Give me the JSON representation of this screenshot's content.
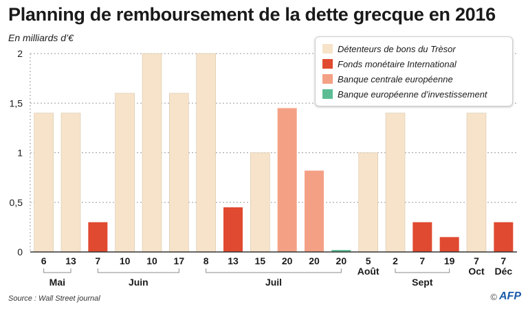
{
  "title": "Planning de remboursement de la dette grecque en 2016",
  "unit_label": "En milliards d’€",
  "source": "Source : Wall Street journal",
  "credit": {
    "copyright": "©",
    "logo_text": "AFP"
  },
  "colors": {
    "tresor": "#f6e3c9",
    "fmi": "#e04a30",
    "bce": "#f4a085",
    "bei": "#5cbd95",
    "grid": "#9a9a9a",
    "axis": "#333333"
  },
  "legend": [
    {
      "key": "tresor",
      "label": "Détenteurs de bons du Trèsor"
    },
    {
      "key": "fmi",
      "label": "Fonds monétaire International"
    },
    {
      "key": "bce",
      "label": "Banque centrale européenne"
    },
    {
      "key": "bei",
      "label": "Banque européenne d’investissement"
    }
  ],
  "chart_data": {
    "type": "bar",
    "title": "Planning de remboursement de la dette grecque en 2016",
    "ylabel": "En milliards d’€",
    "xlabel": "",
    "ylim": [
      0,
      2
    ],
    "yticks": [
      0,
      0.5,
      1,
      1.5,
      2
    ],
    "ytick_labels": [
      "0",
      "0,5",
      "1",
      "1,5",
      "2"
    ],
    "grid": true,
    "legend_position": "top-right",
    "categories": [
      "6",
      "13",
      "7",
      "10",
      "10",
      "17",
      "8",
      "13",
      "15",
      "20",
      "20",
      "20",
      "5",
      "2",
      "7",
      "19",
      "7",
      "7"
    ],
    "bars": [
      {
        "day": "6",
        "series": "tresor",
        "value": 1.4
      },
      {
        "day": "13",
        "series": "tresor",
        "value": 1.4
      },
      {
        "day": "7",
        "series": "fmi",
        "value": 0.3
      },
      {
        "day": "10",
        "series": "tresor",
        "value": 1.6
      },
      {
        "day": "10",
        "series": "tresor",
        "value": 2.0
      },
      {
        "day": "17",
        "series": "tresor",
        "value": 1.6
      },
      {
        "day": "8",
        "series": "tresor",
        "value": 2.0
      },
      {
        "day": "13",
        "series": "fmi",
        "value": 0.45
      },
      {
        "day": "15",
        "series": "tresor",
        "value": 1.0
      },
      {
        "day": "20",
        "series": "bce",
        "value": 1.45
      },
      {
        "day": "20",
        "series": "bce",
        "value": 0.82
      },
      {
        "day": "20",
        "series": "bei",
        "value": 0.02
      },
      {
        "day": "5",
        "series": "tresor",
        "value": 1.0
      },
      {
        "day": "2",
        "series": "tresor",
        "value": 1.4
      },
      {
        "day": "7",
        "series": "fmi",
        "value": 0.3
      },
      {
        "day": "19",
        "series": "fmi",
        "value": 0.15
      },
      {
        "day": "7",
        "series": "tresor",
        "value": 1.4
      },
      {
        "day": "7",
        "series": "fmi",
        "value": 0.3
      }
    ],
    "months": [
      {
        "label": "Mai",
        "bars": [
          0,
          1
        ]
      },
      {
        "label": "Juin",
        "bars": [
          2,
          5
        ]
      },
      {
        "label": "Juil",
        "bars": [
          6,
          11
        ]
      },
      {
        "label": "Août",
        "bars": [
          12,
          12
        ]
      },
      {
        "label": "Sept",
        "bars": [
          13,
          15
        ]
      },
      {
        "label": "Oct",
        "bars": [
          16,
          16
        ]
      },
      {
        "label": "Déc",
        "bars": [
          17,
          17
        ]
      }
    ]
  }
}
